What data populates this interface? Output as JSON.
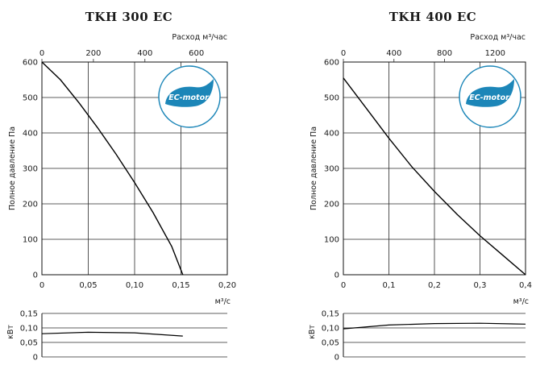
{
  "chart_data": [
    {
      "type": "line",
      "title": "TKH 300 EC",
      "top_axis_label": "Расход м³/час",
      "top_ticks": [
        "0",
        "200",
        "400",
        "600"
      ],
      "top_range": [
        0,
        720
      ],
      "ylabel": "Полное давление Па",
      "ylim": [
        0,
        600
      ],
      "yticks": [
        "0",
        "100",
        "200",
        "300",
        "400",
        "500",
        "600"
      ],
      "xlabel": "м³/с",
      "xlim": [
        0,
        0.2
      ],
      "xticks": [
        "0",
        "0,05",
        "0,10",
        "0,15",
        "0,20"
      ],
      "badge": "EC-motor",
      "series": [
        {
          "name": "pressure",
          "x": [
            0,
            0.02,
            0.04,
            0.06,
            0.08,
            0.1,
            0.12,
            0.14,
            0.152
          ],
          "y": [
            600,
            550,
            485,
            415,
            340,
            260,
            175,
            80,
            0
          ]
        }
      ],
      "power": {
        "ylabel": "кВт",
        "ylim": [
          0,
          0.15
        ],
        "yticks": [
          "0",
          "0,05",
          "0,10",
          "0,15"
        ],
        "series": [
          {
            "name": "power",
            "x": [
              0,
              0.05,
              0.1,
              0.152
            ],
            "y": [
              0.08,
              0.085,
              0.083,
              0.072
            ]
          }
        ]
      }
    },
    {
      "type": "line",
      "title": "TKH 400 EC",
      "top_axis_label": "Расход м³/час",
      "top_ticks": [
        "0",
        "400",
        "800",
        "1200"
      ],
      "top_range": [
        0,
        1440
      ],
      "ylabel": "Полное давление Па",
      "ylim": [
        0,
        600
      ],
      "yticks": [
        "0",
        "100",
        "200",
        "300",
        "400",
        "500",
        "600"
      ],
      "xlabel": "м³/с",
      "xlim": [
        0,
        0.4
      ],
      "xticks": [
        "0",
        "0,1",
        "0,2",
        "0,3",
        "0,4"
      ],
      "badge": "EC-motor",
      "series": [
        {
          "name": "pressure",
          "x": [
            0,
            0.05,
            0.1,
            0.15,
            0.2,
            0.25,
            0.3,
            0.35,
            0.4
          ],
          "y": [
            555,
            470,
            385,
            305,
            235,
            170,
            110,
            55,
            0
          ]
        }
      ],
      "power": {
        "ylabel": "кВт",
        "ylim": [
          0,
          0.15
        ],
        "yticks": [
          "0",
          "0,05",
          "0,10",
          "0,15"
        ],
        "series": [
          {
            "name": "power",
            "x": [
              0,
              0.1,
              0.2,
              0.3,
              0.4
            ],
            "y": [
              0.097,
              0.11,
              0.115,
              0.116,
              0.113
            ]
          }
        ]
      }
    }
  ]
}
